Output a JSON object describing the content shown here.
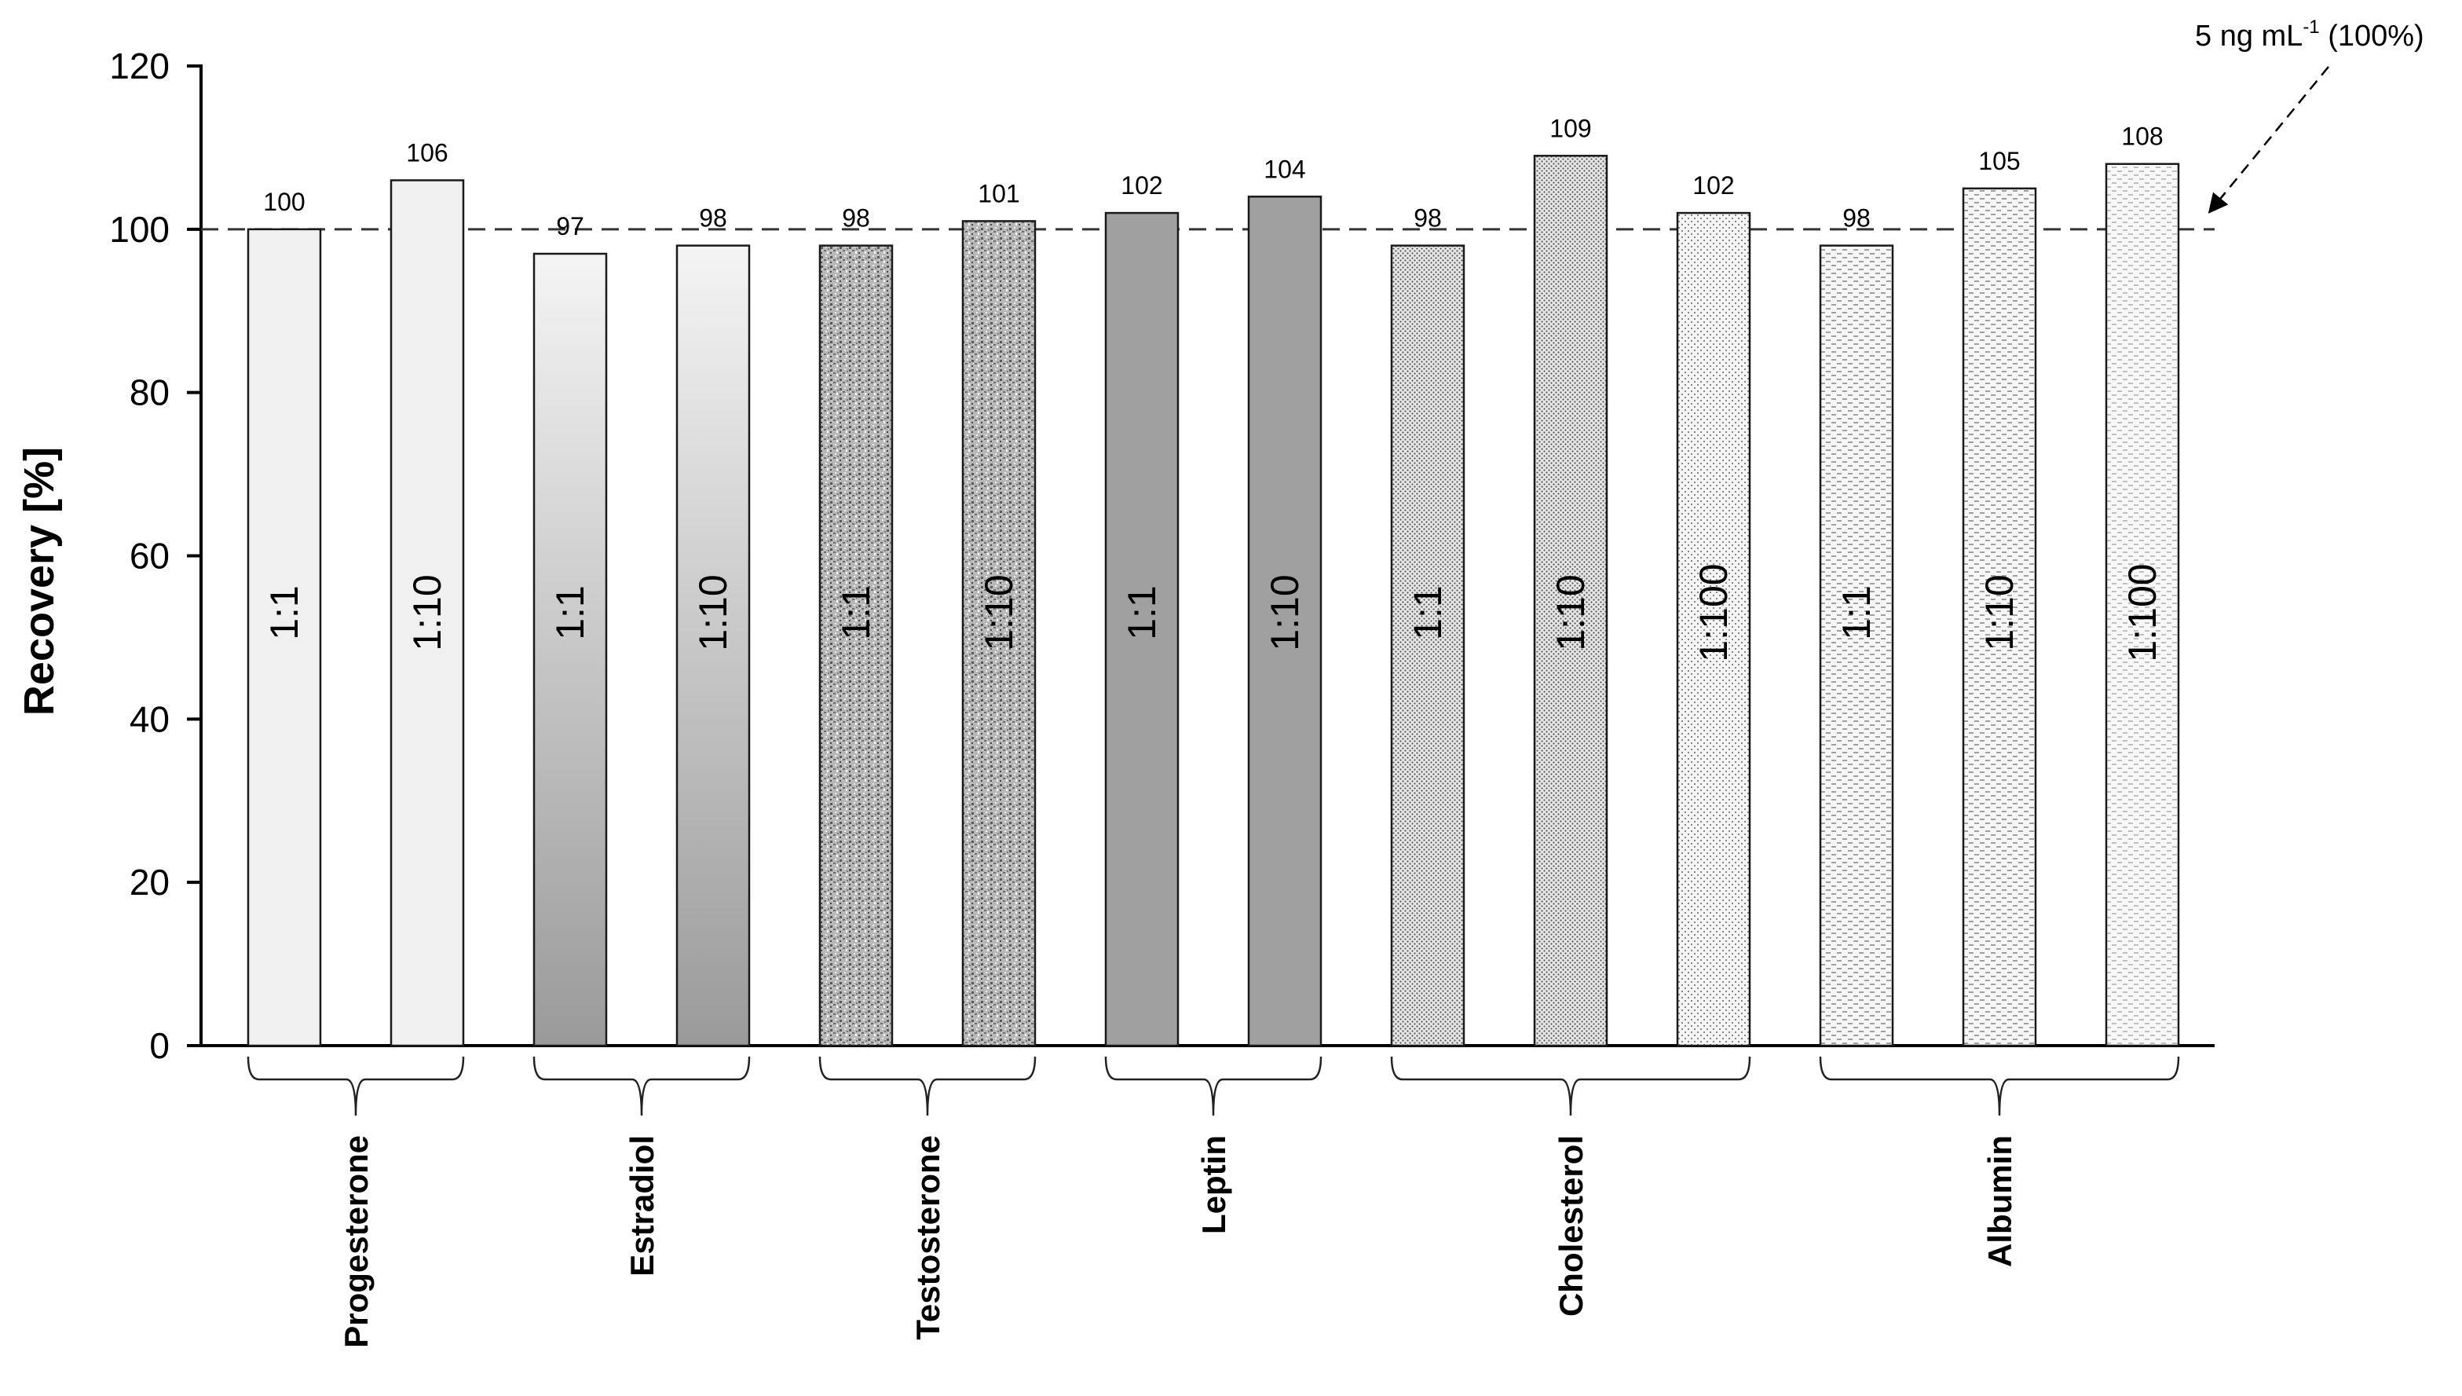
{
  "chart_data": {
    "type": "bar",
    "ylabel": "Recovery [%]",
    "ylim": [
      0,
      120
    ],
    "yticks": [
      0,
      20,
      40,
      60,
      80,
      100,
      120
    ],
    "reference_line": {
      "value": 100,
      "label_main": "5 ng mL",
      "label_sup": "-1",
      "label_tail": " (100%)"
    },
    "groups": [
      {
        "name": "Progesterone",
        "bars": [
          {
            "ratio": "1:1",
            "value": 100,
            "label": "100",
            "pattern": "light"
          },
          {
            "ratio": "1:10",
            "value": 106,
            "label": "106",
            "pattern": "light"
          }
        ]
      },
      {
        "name": "Estradiol",
        "bars": [
          {
            "ratio": "1:1",
            "value": 97,
            "label": "97",
            "pattern": "gradient"
          },
          {
            "ratio": "1:10",
            "value": 98,
            "label": "98",
            "pattern": "gradient"
          }
        ]
      },
      {
        "name": "Testosterone",
        "bars": [
          {
            "ratio": "1:1",
            "value": 98,
            "label": "98",
            "pattern": "granite"
          },
          {
            "ratio": "1:10",
            "value": 101,
            "label": "101",
            "pattern": "granite"
          }
        ]
      },
      {
        "name": "Leptin",
        "bars": [
          {
            "ratio": "1:1",
            "value": 102,
            "label": "102",
            "pattern": "solid"
          },
          {
            "ratio": "1:10",
            "value": 104,
            "label": "104",
            "pattern": "solid"
          }
        ]
      },
      {
        "name": "Cholesterol",
        "bars": [
          {
            "ratio": "1:1",
            "value": 98,
            "label": "98",
            "pattern": "dots-dense"
          },
          {
            "ratio": "1:10",
            "value": 109,
            "label": "109",
            "pattern": "dots-dense"
          },
          {
            "ratio": "1:100",
            "value": 102,
            "label": "102",
            "pattern": "dots-sparse"
          }
        ]
      },
      {
        "name": "Albumin",
        "bars": [
          {
            "ratio": "1:1",
            "value": 98,
            "label": "98",
            "pattern": "dashes"
          },
          {
            "ratio": "1:10",
            "value": 105,
            "label": "105",
            "pattern": "dashes"
          },
          {
            "ratio": "1:100",
            "value": 108,
            "label": "108",
            "pattern": "dashes-light"
          }
        ]
      }
    ],
    "colors": {
      "axis": "#000000",
      "bar_stroke": "#1a1a1a",
      "light": "#f0f0f0",
      "solid": "#a0a0a0"
    },
    "grid": false,
    "legend": "none"
  }
}
